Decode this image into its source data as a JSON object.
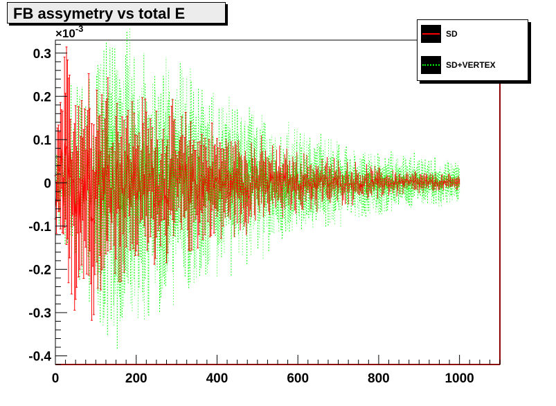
{
  "title": "FB assymetry vs total E",
  "legend": [
    {
      "label": "SD",
      "color": "#ff0000",
      "style": "solid"
    },
    {
      "label": "SD+VERTEX",
      "color": "#00ff00",
      "style": "dotted"
    }
  ],
  "chart_data": {
    "type": "line",
    "title": "FB assymetry vs total E",
    "xlabel": "",
    "ylabel": "",
    "y_exponent_label": "×10-3",
    "xlim": [
      0,
      1100
    ],
    "ylim": [
      -0.42,
      0.33
    ],
    "x_ticks": [
      0,
      200,
      400,
      600,
      800,
      1000
    ],
    "y_ticks": [
      -0.4,
      -0.3,
      -0.2,
      -0.1,
      0,
      0.1,
      0.2,
      0.3
    ],
    "x_tick_labels": [
      "0",
      "200",
      "400",
      "600",
      "800",
      "1000"
    ],
    "y_tick_labels": [
      "-0.4",
      "-0.3",
      "-0.2",
      "-0.1",
      "0",
      "0.1",
      "0.2",
      "0.3"
    ],
    "grid": false,
    "legend_position": "top-right",
    "series": [
      {
        "name": "SD",
        "color": "#ff0000",
        "style": "solid",
        "x_range": [
          0,
          1000
        ],
        "error_envelope": [
          [
            0,
            0.16
          ],
          [
            25,
            0.26
          ],
          [
            100,
            0.24
          ],
          [
            200,
            0.17
          ],
          [
            400,
            0.11
          ],
          [
            600,
            0.06
          ],
          [
            800,
            0.03
          ],
          [
            1000,
            0.015
          ]
        ]
      },
      {
        "name": "SD+VERTEX",
        "color": "#00ff00",
        "style": "dotted",
        "x_range": [
          0,
          1000
        ],
        "error_envelope": [
          [
            0,
            0.05
          ],
          [
            50,
            0.22
          ],
          [
            120,
            0.32
          ],
          [
            200,
            0.27
          ],
          [
            400,
            0.17
          ],
          [
            600,
            0.1
          ],
          [
            800,
            0.06
          ],
          [
            1000,
            0.04
          ]
        ]
      }
    ]
  }
}
